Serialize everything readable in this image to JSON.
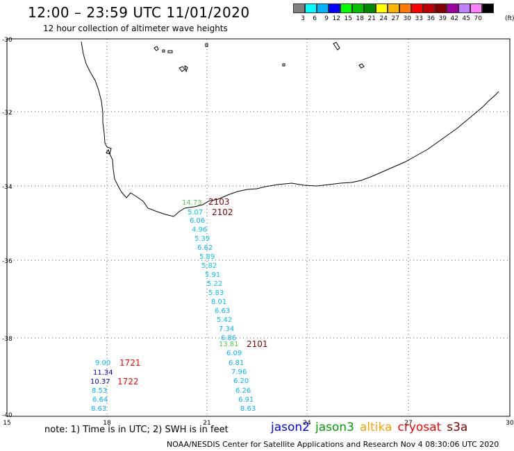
{
  "header": {
    "title": "12:00 – 23:59 UTC 11/01/2020",
    "subtitle": "12 hour collection of altimeter wave heights"
  },
  "scale": {
    "colors": [
      "#808080",
      "#00ffff",
      "#00b4ff",
      "#0000ff",
      "#00ff00",
      "#00c000",
      "#008800",
      "#ffff00",
      "#ffb400",
      "#ff7a00",
      "#ff0000",
      "#c00000",
      "#800000",
      "#a000a0",
      "#c080ff",
      "#ff80ff",
      "#000000"
    ],
    "labels": [
      "3",
      "6",
      "9",
      "12",
      "15",
      "18",
      "21",
      "24",
      "27",
      "30",
      "33",
      "36",
      "39",
      "42",
      "45",
      "70"
    ],
    "units": "(ft)"
  },
  "map": {
    "lat_labels": [
      "-30",
      "-32",
      "-34",
      "-36",
      "-38",
      "-40"
    ],
    "lon_labels": [
      "15",
      "18",
      "21",
      "24",
      "27",
      "30"
    ]
  },
  "tracks": [
    {
      "label": "2103",
      "color": "#800000"
    },
    {
      "label": "2102",
      "color": "#800000"
    },
    {
      "label": "2101",
      "color": "#800000"
    },
    {
      "label": "1721",
      "color": "#ff0000"
    },
    {
      "label": "1722",
      "color": "#ff0000"
    }
  ],
  "readings": [
    {
      "value": "14.73",
      "color": "#4ccc4c"
    },
    {
      "value": "5.07",
      "color": "#00c8e8"
    },
    {
      "value": "6.06",
      "color": "#00b4ff"
    },
    {
      "value": "4.96",
      "color": "#00c8e8"
    },
    {
      "value": "5.39",
      "color": "#00c8e8"
    },
    {
      "value": "6.62",
      "color": "#00b4ff"
    },
    {
      "value": "5.89",
      "color": "#00c8e8"
    },
    {
      "value": "5.82",
      "color": "#00c8e8"
    },
    {
      "value": "5.91",
      "color": "#00c8e8"
    },
    {
      "value": "5.22",
      "color": "#00c8e8"
    },
    {
      "value": "5.83",
      "color": "#00c8e8"
    },
    {
      "value": "8.01",
      "color": "#00b4ff"
    },
    {
      "value": "6.63",
      "color": "#00b4ff"
    },
    {
      "value": "5.42",
      "color": "#00c8e8"
    },
    {
      "value": "7.34",
      "color": "#00b4ff"
    },
    {
      "value": "6.86",
      "color": "#00b4ff"
    },
    {
      "value": "13.81",
      "color": "#4ccc4c"
    },
    {
      "value": "6.09",
      "color": "#00b4ff"
    },
    {
      "value": "6.81",
      "color": "#00b4ff"
    },
    {
      "value": "7.96",
      "color": "#00b4ff"
    },
    {
      "value": "6.20",
      "color": "#00b4ff"
    },
    {
      "value": "6.26",
      "color": "#00b4ff"
    },
    {
      "value": "6.91",
      "color": "#00b4ff"
    },
    {
      "value": "8.63",
      "color": "#00b4ff"
    },
    {
      "value": "9.00",
      "color": "#00b4ff"
    },
    {
      "value": "11.34",
      "color": "#0000c8"
    },
    {
      "value": "10.37",
      "color": "#0000c8"
    },
    {
      "value": "8.53",
      "color": "#00b4ff"
    },
    {
      "value": "6.64",
      "color": "#00b4ff"
    },
    {
      "value": "8.63",
      "color": "#00b4ff"
    }
  ],
  "note": "note: 1) Time is in UTC; 2) SWH is in feet",
  "satellites": [
    {
      "name": "jason2",
      "color": "#0000ff"
    },
    {
      "name": "jason3",
      "color": "#00a000"
    },
    {
      "name": "altika",
      "color": "#ffa000"
    },
    {
      "name": "cryosat",
      "color": "#ff0000"
    },
    {
      "name": "s3a",
      "color": "#800000"
    }
  ],
  "footer": "NOAA/NESDIS Center for Satellite Applications and Research    Nov  4 08:30:06 UTC 2020"
}
